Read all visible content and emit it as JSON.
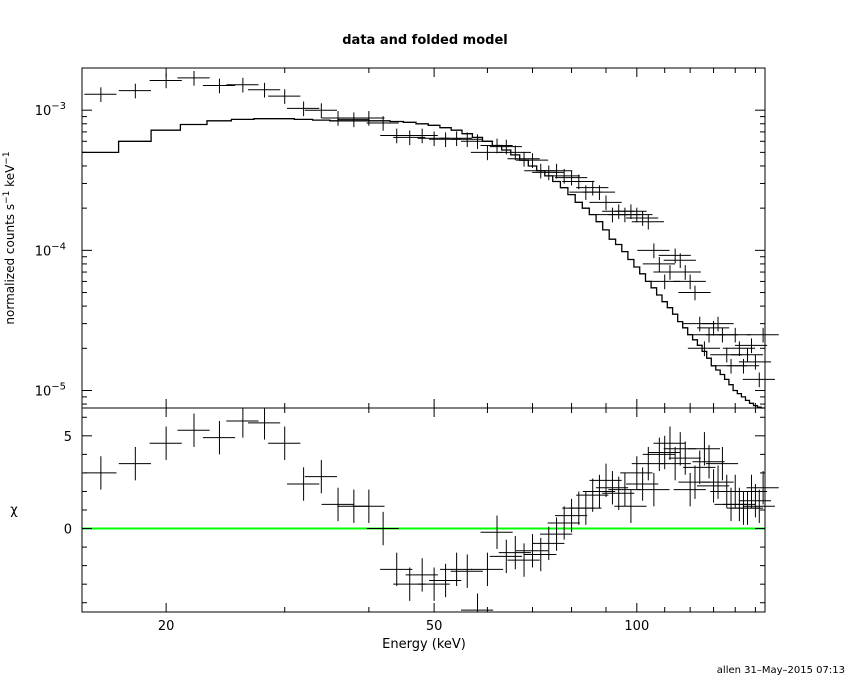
{
  "chart_data": {
    "type": "line",
    "title": "data and folded model",
    "footer": "allen 31–May–2015 07:13",
    "xlabel": "Energy (keV)",
    "xscale": "log",
    "xlim": [
      15,
      155
    ],
    "x_ticks": [
      20,
      50,
      100
    ],
    "x_tick_labels": [
      "20",
      "50",
      "100"
    ],
    "top_panel": {
      "ylabel_parts": [
        "normalized counts s",
        "−1",
        " keV",
        "−1"
      ],
      "yscale": "log",
      "ylim": [
        7.5e-06,
        0.002
      ],
      "y_ticks": [
        0.001,
        0.0001,
        1e-05
      ],
      "y_tick_bases": [
        "10",
        "10",
        "10"
      ],
      "y_tick_exps": [
        "−3",
        "−4",
        "−5"
      ],
      "data": {
        "x": [
          16.0,
          18.0,
          20.0,
          22.0,
          24.0,
          26.0,
          28.0,
          30.0,
          32.0,
          34.0,
          36.0,
          38.0,
          40.0,
          42.0,
          44.0,
          46.0,
          48.0,
          50.0,
          52.0,
          54.0,
          56.0,
          58.0,
          60.0,
          62.0,
          64.0,
          66.0,
          68.0,
          70.0,
          72.0,
          74.0,
          76.0,
          78.0,
          80.0,
          82.0,
          84.0,
          86.0,
          88.0,
          90.0,
          92.0,
          94.0,
          96.0,
          98.0,
          100.0,
          102.0,
          104.0,
          106.0,
          108.0,
          110.0,
          112.0,
          114.0,
          116.0,
          118.0,
          120.0,
          122.0,
          124.0,
          126.0,
          128.0,
          130.0,
          132.0,
          134.0,
          136.0,
          138.0,
          140.0,
          142.0,
          144.0,
          146.0,
          148.0,
          150.0,
          152.0,
          154.0
        ],
        "y": [
          0.0013,
          0.00138,
          0.00163,
          0.0017,
          0.0015,
          0.00152,
          0.0014,
          0.00126,
          0.00103,
          0.001,
          0.00088,
          0.00086,
          0.00088,
          0.00081,
          0.00066,
          0.00064,
          0.00066,
          0.00063,
          0.00062,
          0.00063,
          0.00062,
          0.0006,
          0.0005,
          0.00056,
          0.00055,
          0.0005,
          0.00045,
          0.00044,
          0.00037,
          0.00036,
          0.00037,
          0.00034,
          0.00033,
          0.00031,
          0.00026,
          0.00028,
          0.00026,
          0.00022,
          0.00018,
          0.00019,
          0.00018,
          0.00019,
          0.00018,
          0.00017,
          0.00016,
          0.0001,
          8e-05,
          6e-05,
          7e-05,
          9.2e-05,
          8.5e-05,
          7e-05,
          6e-05,
          5e-05,
          3e-05,
          2e-05,
          2.5e-05,
          2.8e-05,
          3e-05,
          2.5e-05,
          1.8e-05,
          1.5e-05,
          2.5e-05,
          2e-05,
          1.5e-05,
          1.8e-05,
          2.1e-05,
          1.6e-05,
          1.2e-05,
          2.5e-05
        ],
        "yerr_rel": 0.12
      },
      "model": {
        "x": [
          15,
          17,
          19,
          21,
          23,
          25,
          27,
          29,
          31,
          33,
          35,
          37,
          39,
          41,
          43,
          45,
          47,
          49,
          51,
          53,
          55,
          57,
          59,
          61,
          63,
          65,
          67,
          69,
          71,
          73,
          75,
          77,
          79,
          81,
          83,
          85,
          87,
          89,
          91,
          93,
          95,
          97,
          99,
          101,
          103,
          105,
          107,
          109,
          111,
          113,
          115,
          117,
          119,
          121,
          123,
          125,
          127,
          129,
          131,
          133,
          135,
          137,
          139,
          141,
          143,
          145,
          147,
          149,
          151,
          153,
          155
        ],
        "y": [
          0.0005,
          0.0006,
          0.00072,
          0.00079,
          0.00084,
          0.00086,
          0.00087,
          0.00087,
          0.00086,
          0.00085,
          0.00084,
          0.00084,
          0.00084,
          0.00084,
          0.00083,
          0.00082,
          0.0008,
          0.00078,
          0.00075,
          0.00072,
          0.00068,
          0.00064,
          0.0006,
          0.00056,
          0.00052,
          0.00048,
          0.00044,
          0.0004,
          0.00037,
          0.00034,
          0.00031,
          0.00028,
          0.00025,
          0.00022,
          0.0002,
          0.00018,
          0.00016,
          0.00014,
          0.00012,
          0.00011,
          9.8e-05,
          8.6e-05,
          7.6e-05,
          6.8e-05,
          6e-05,
          5.4e-05,
          4.8e-05,
          4.3e-05,
          3.9e-05,
          3.5e-05,
          3.1e-05,
          2.8e-05,
          2.5e-05,
          2.3e-05,
          2.1e-05,
          1.9e-05,
          1.7e-05,
          1.5e-05,
          1.4e-05,
          1.3e-05,
          1.2e-05,
          1.1e-05,
          1e-05,
          9.5e-06,
          9e-06,
          8.5e-06,
          8.1e-06,
          7.8e-06,
          7.6e-06,
          7.5e-06,
          7.5e-06
        ]
      }
    },
    "bottom_panel": {
      "ylabel": "χ",
      "ylim": [
        -4.5,
        6.5
      ],
      "y_ticks": [
        0,
        5
      ],
      "y_tick_labels": [
        "0",
        "5"
      ],
      "zero_line_color": "#00ff00",
      "residuals": {
        "x": [
          16.0,
          18.0,
          20.0,
          22.0,
          24.0,
          26.0,
          28.0,
          30.0,
          32.0,
          34.0,
          36.0,
          38.0,
          40.0,
          42.0,
          44.0,
          46.0,
          48.0,
          50.0,
          52.0,
          54.0,
          56.0,
          58.0,
          60.0,
          62.0,
          64.0,
          66.0,
          68.0,
          70.0,
          72.0,
          74.0,
          76.0,
          78.0,
          80.0,
          82.0,
          84.0,
          86.0,
          88.0,
          90.0,
          92.0,
          94.0,
          96.0,
          98.0,
          100.0,
          102.0,
          104.0,
          106.0,
          108.0,
          110.0,
          112.0,
          114.0,
          116.0,
          118.0,
          120.0,
          122.0,
          124.0,
          126.0,
          128.0,
          130.0,
          132.0,
          134.0,
          136.0,
          138.0,
          140.0,
          142.0,
          144.0,
          146.0,
          148.0,
          150.0,
          152.0,
          154.0
        ],
        "y": [
          3.0,
          3.5,
          4.6,
          5.3,
          4.9,
          5.8,
          5.7,
          4.6,
          2.4,
          2.8,
          1.3,
          1.2,
          1.2,
          0.0,
          -2.2,
          -3.0,
          -2.5,
          -3.0,
          -2.8,
          -2.2,
          -2.3,
          -4.4,
          -2.2,
          -0.2,
          -1.5,
          -1.3,
          -1.7,
          -1.2,
          -1.4,
          -0.8,
          -0.3,
          0.3,
          0.7,
          1.1,
          1.1,
          1.8,
          2.0,
          2.6,
          2.2,
          1.9,
          2.1,
          1.2,
          3.0,
          2.4,
          3.5,
          2.1,
          4.0,
          4.1,
          4.6,
          3.5,
          4.3,
          3.8,
          2.1,
          2.5,
          3.3,
          4.3,
          3.6,
          2.3,
          2.5,
          3.5,
          2.0,
          1.3,
          2.0,
          1.3,
          1.1,
          1.1,
          2.0,
          1.5,
          1.2,
          2.2
        ],
        "yerr": 0.9
      }
    }
  }
}
